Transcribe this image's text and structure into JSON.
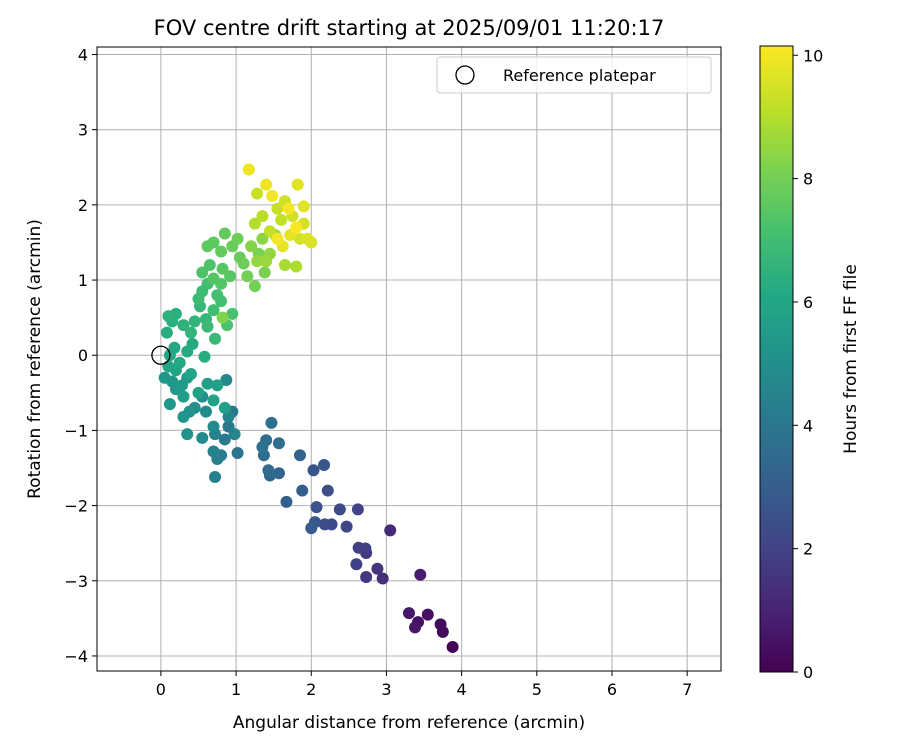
{
  "chart_data": {
    "type": "scatter",
    "title": "FOV centre drift starting at 2025/09/01 11:20:17",
    "xlabel": "Angular distance from reference (arcmin)",
    "ylabel": "Rotation from reference (arcmin)",
    "xlim": [
      -0.85,
      7.45
    ],
    "ylim": [
      -4.2,
      4.1
    ],
    "xticks": [
      0,
      1,
      2,
      3,
      4,
      5,
      6,
      7
    ],
    "yticks": [
      -4,
      -3,
      -2,
      -1,
      0,
      1,
      2,
      3,
      4
    ],
    "grid": true,
    "legend": {
      "placement": "top-right",
      "entries": [
        "Reference platepar"
      ]
    },
    "reference": {
      "x": 0,
      "y": 0
    },
    "colorbar": {
      "label": "Hours from first FF file",
      "range": [
        0,
        10.15
      ],
      "ticks": [
        0,
        2,
        4,
        6,
        8,
        10
      ],
      "colormap": "viridis"
    },
    "points": [
      {
        "x": 3.88,
        "y": -3.88,
        "t": 0.1
      },
      {
        "x": 3.75,
        "y": -3.68,
        "t": 0.2
      },
      {
        "x": 3.72,
        "y": -3.58,
        "t": 0.3
      },
      {
        "x": 3.55,
        "y": -3.45,
        "t": 0.4
      },
      {
        "x": 3.42,
        "y": -3.55,
        "t": 0.5
      },
      {
        "x": 3.38,
        "y": -3.62,
        "t": 0.6
      },
      {
        "x": 3.3,
        "y": -3.43,
        "t": 0.7
      },
      {
        "x": 3.45,
        "y": -2.92,
        "t": 0.8
      },
      {
        "x": 3.05,
        "y": -2.33,
        "t": 1.2
      },
      {
        "x": 2.95,
        "y": -2.97,
        "t": 1.4
      },
      {
        "x": 2.88,
        "y": -2.84,
        "t": 1.5
      },
      {
        "x": 2.73,
        "y": -2.95,
        "t": 1.6
      },
      {
        "x": 2.73,
        "y": -2.63,
        "t": 1.7
      },
      {
        "x": 2.72,
        "y": -2.57,
        "t": 1.8
      },
      {
        "x": 2.63,
        "y": -2.56,
        "t": 1.9
      },
      {
        "x": 2.6,
        "y": -2.78,
        "t": 1.9
      },
      {
        "x": 2.62,
        "y": -2.05,
        "t": 2.0
      },
      {
        "x": 2.47,
        "y": -2.28,
        "t": 2.1
      },
      {
        "x": 2.38,
        "y": -2.05,
        "t": 2.2
      },
      {
        "x": 2.27,
        "y": -2.25,
        "t": 2.3
      },
      {
        "x": 2.18,
        "y": -2.25,
        "t": 2.3
      },
      {
        "x": 2.22,
        "y": -1.8,
        "t": 2.4
      },
      {
        "x": 2.07,
        "y": -2.02,
        "t": 2.5
      },
      {
        "x": 2.03,
        "y": -1.53,
        "t": 2.6
      },
      {
        "x": 2.17,
        "y": -1.46,
        "t": 2.7
      },
      {
        "x": 2.05,
        "y": -2.22,
        "t": 2.8
      },
      {
        "x": 2.0,
        "y": -2.3,
        "t": 2.9
      },
      {
        "x": 1.88,
        "y": -1.8,
        "t": 3.0
      },
      {
        "x": 1.67,
        "y": -1.95,
        "t": 3.1
      },
      {
        "x": 1.85,
        "y": -1.33,
        "t": 3.2
      },
      {
        "x": 1.57,
        "y": -1.57,
        "t": 3.3
      },
      {
        "x": 1.45,
        "y": -1.6,
        "t": 3.4
      },
      {
        "x": 1.43,
        "y": -1.53,
        "t": 3.5
      },
      {
        "x": 1.57,
        "y": -1.17,
        "t": 3.6
      },
      {
        "x": 1.37,
        "y": -1.33,
        "t": 3.6
      },
      {
        "x": 1.4,
        "y": -1.13,
        "t": 3.7
      },
      {
        "x": 1.47,
        "y": -0.9,
        "t": 3.7
      },
      {
        "x": 1.35,
        "y": -1.22,
        "t": 3.8
      },
      {
        "x": 1.02,
        "y": -1.3,
        "t": 3.9
      },
      {
        "x": 0.95,
        "y": -0.75,
        "t": 4.0
      },
      {
        "x": 0.9,
        "y": -0.95,
        "t": 4.0
      },
      {
        "x": 0.85,
        "y": -1.12,
        "t": 4.1
      },
      {
        "x": 0.8,
        "y": -1.33,
        "t": 4.2
      },
      {
        "x": 0.75,
        "y": -1.38,
        "t": 4.3
      },
      {
        "x": 0.72,
        "y": -1.62,
        "t": 4.4
      },
      {
        "x": 0.7,
        "y": -1.28,
        "t": 4.5
      },
      {
        "x": 0.72,
        "y": -1.05,
        "t": 4.5
      },
      {
        "x": 0.9,
        "y": -0.82,
        "t": 4.6
      },
      {
        "x": 0.98,
        "y": -1.05,
        "t": 4.6
      },
      {
        "x": 0.87,
        "y": -0.33,
        "t": 4.7
      },
      {
        "x": 0.7,
        "y": -0.95,
        "t": 4.8
      },
      {
        "x": 0.55,
        "y": -1.1,
        "t": 4.8
      },
      {
        "x": 0.6,
        "y": -0.75,
        "t": 4.9
      },
      {
        "x": 0.55,
        "y": -0.55,
        "t": 5.0
      },
      {
        "x": 0.45,
        "y": -0.7,
        "t": 5.0
      },
      {
        "x": 0.38,
        "y": -0.75,
        "t": 5.1
      },
      {
        "x": 0.3,
        "y": -0.82,
        "t": 5.2
      },
      {
        "x": 0.35,
        "y": -1.05,
        "t": 5.2
      },
      {
        "x": 0.12,
        "y": -0.65,
        "t": 5.3
      },
      {
        "x": 0.05,
        "y": -0.3,
        "t": 5.3
      },
      {
        "x": 0.15,
        "y": -0.35,
        "t": 5.4
      },
      {
        "x": 0.2,
        "y": -0.45,
        "t": 5.4
      },
      {
        "x": 0.28,
        "y": -0.4,
        "t": 5.5
      },
      {
        "x": 0.35,
        "y": -0.3,
        "t": 5.5
      },
      {
        "x": 0.3,
        "y": -0.55,
        "t": 5.6
      },
      {
        "x": 0.62,
        "y": -0.38,
        "t": 5.6
      },
      {
        "x": 0.75,
        "y": -0.4,
        "t": 5.7
      },
      {
        "x": 0.85,
        "y": -0.7,
        "t": 5.7
      },
      {
        "x": 0.7,
        "y": -0.6,
        "t": 5.8
      },
      {
        "x": 0.5,
        "y": -0.5,
        "t": 5.8
      },
      {
        "x": 0.4,
        "y": -0.25,
        "t": 5.9
      },
      {
        "x": 0.2,
        "y": -0.2,
        "t": 5.9
      },
      {
        "x": 0.1,
        "y": -0.15,
        "t": 6.0
      },
      {
        "x": 0.12,
        "y": 0.0,
        "t": 6.0
      },
      {
        "x": 0.18,
        "y": 0.1,
        "t": 6.1
      },
      {
        "x": 0.25,
        "y": -0.1,
        "t": 6.1
      },
      {
        "x": 0.35,
        "y": 0.05,
        "t": 6.2
      },
      {
        "x": 0.42,
        "y": 0.15,
        "t": 6.2
      },
      {
        "x": 0.58,
        "y": -0.02,
        "t": 6.3
      },
      {
        "x": 0.08,
        "y": 0.3,
        "t": 6.3
      },
      {
        "x": 0.15,
        "y": 0.45,
        "t": 6.4
      },
      {
        "x": 0.2,
        "y": 0.55,
        "t": 6.4
      },
      {
        "x": 0.1,
        "y": 0.52,
        "t": 6.5
      },
      {
        "x": 0.3,
        "y": 0.4,
        "t": 6.5
      },
      {
        "x": 0.4,
        "y": 0.3,
        "t": 6.6
      },
      {
        "x": 0.45,
        "y": 0.45,
        "t": 6.6
      },
      {
        "x": 0.52,
        "y": 0.65,
        "t": 6.7
      },
      {
        "x": 0.6,
        "y": 0.48,
        "t": 6.7
      },
      {
        "x": 0.62,
        "y": 0.38,
        "t": 6.8
      },
      {
        "x": 0.72,
        "y": 0.22,
        "t": 6.8
      },
      {
        "x": 0.5,
        "y": 0.75,
        "t": 6.9
      },
      {
        "x": 0.55,
        "y": 0.85,
        "t": 6.9
      },
      {
        "x": 0.62,
        "y": 0.95,
        "t": 7.0
      },
      {
        "x": 0.7,
        "y": 0.6,
        "t": 7.0
      },
      {
        "x": 0.75,
        "y": 0.8,
        "t": 7.1
      },
      {
        "x": 0.8,
        "y": 0.72,
        "t": 7.1
      },
      {
        "x": 0.88,
        "y": 0.4,
        "t": 7.2
      },
      {
        "x": 0.95,
        "y": 0.55,
        "t": 7.2
      },
      {
        "x": 0.55,
        "y": 1.1,
        "t": 7.3
      },
      {
        "x": 0.65,
        "y": 1.2,
        "t": 7.3
      },
      {
        "x": 0.7,
        "y": 1.02,
        "t": 7.4
      },
      {
        "x": 0.8,
        "y": 0.95,
        "t": 7.4
      },
      {
        "x": 0.82,
        "y": 1.15,
        "t": 7.5
      },
      {
        "x": 0.92,
        "y": 1.05,
        "t": 7.5
      },
      {
        "x": 0.62,
        "y": 1.45,
        "t": 7.6
      },
      {
        "x": 0.7,
        "y": 1.5,
        "t": 7.6
      },
      {
        "x": 0.8,
        "y": 1.38,
        "t": 7.7
      },
      {
        "x": 0.85,
        "y": 1.62,
        "t": 7.7
      },
      {
        "x": 0.95,
        "y": 1.45,
        "t": 7.8
      },
      {
        "x": 1.05,
        "y": 1.3,
        "t": 7.8
      },
      {
        "x": 1.02,
        "y": 1.55,
        "t": 7.9
      },
      {
        "x": 1.1,
        "y": 1.22,
        "t": 7.9
      },
      {
        "x": 1.15,
        "y": 1.05,
        "t": 8.0
      },
      {
        "x": 1.25,
        "y": 0.92,
        "t": 8.0
      },
      {
        "x": 1.38,
        "y": 1.1,
        "t": 8.1
      },
      {
        "x": 1.3,
        "y": 1.35,
        "t": 8.1
      },
      {
        "x": 0.82,
        "y": 0.5,
        "t": 8.2
      },
      {
        "x": 1.2,
        "y": 1.45,
        "t": 8.3
      },
      {
        "x": 1.35,
        "y": 1.55,
        "t": 8.4
      },
      {
        "x": 1.45,
        "y": 1.35,
        "t": 8.5
      },
      {
        "x": 1.28,
        "y": 1.25,
        "t": 8.5
      },
      {
        "x": 1.4,
        "y": 1.25,
        "t": 8.6
      },
      {
        "x": 1.52,
        "y": 1.6,
        "t": 8.7
      },
      {
        "x": 1.65,
        "y": 1.2,
        "t": 8.8
      },
      {
        "x": 1.8,
        "y": 1.18,
        "t": 8.9
      },
      {
        "x": 1.25,
        "y": 1.75,
        "t": 9.0
      },
      {
        "x": 1.35,
        "y": 1.85,
        "t": 9.1
      },
      {
        "x": 1.6,
        "y": 1.8,
        "t": 9.2
      },
      {
        "x": 1.45,
        "y": 1.65,
        "t": 9.2
      },
      {
        "x": 1.28,
        "y": 2.15,
        "t": 9.3
      },
      {
        "x": 1.55,
        "y": 1.95,
        "t": 9.3
      },
      {
        "x": 1.65,
        "y": 2.05,
        "t": 9.4
      },
      {
        "x": 1.75,
        "y": 1.85,
        "t": 9.4
      },
      {
        "x": 1.85,
        "y": 1.55,
        "t": 9.5
      },
      {
        "x": 1.9,
        "y": 1.75,
        "t": 9.5
      },
      {
        "x": 1.95,
        "y": 1.55,
        "t": 9.6
      },
      {
        "x": 2.0,
        "y": 1.5,
        "t": 9.6
      },
      {
        "x": 1.82,
        "y": 2.27,
        "t": 9.7
      },
      {
        "x": 1.9,
        "y": 1.98,
        "t": 9.7
      },
      {
        "x": 1.72,
        "y": 1.6,
        "t": 9.8
      },
      {
        "x": 1.62,
        "y": 1.45,
        "t": 9.8
      },
      {
        "x": 1.17,
        "y": 2.47,
        "t": 9.9
      },
      {
        "x": 1.4,
        "y": 2.27,
        "t": 9.9
      },
      {
        "x": 1.48,
        "y": 2.12,
        "t": 10.0
      },
      {
        "x": 1.55,
        "y": 1.55,
        "t": 10.0
      },
      {
        "x": 1.7,
        "y": 1.95,
        "t": 10.05
      },
      {
        "x": 1.8,
        "y": 1.7,
        "t": 10.1
      }
    ]
  }
}
